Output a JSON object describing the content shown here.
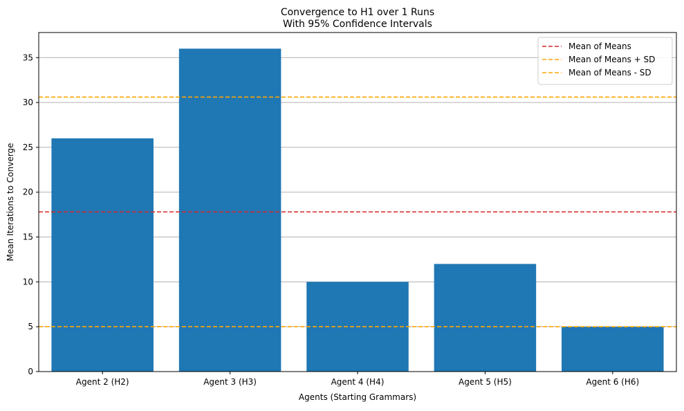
{
  "chart_data": {
    "type": "bar",
    "title": "Convergence to H1 over 1 Runs",
    "subtitle": "With 95% Confidence Intervals",
    "xlabel": "Agents (Starting Grammars)",
    "ylabel": "Mean Iterations to Converge",
    "categories": [
      "Agent 2 (H2)",
      "Agent 3 (H3)",
      "Agent 4 (H4)",
      "Agent 5 (H5)",
      "Agent 6 (H6)"
    ],
    "values": [
      26,
      36,
      10,
      12,
      5
    ],
    "ylim": [
      0,
      37.8
    ],
    "yticks": [
      0,
      5,
      10,
      15,
      20,
      25,
      30,
      35
    ],
    "grid": "y",
    "bar_color": "#1f77b4",
    "reference_lines": [
      {
        "name": "Mean of Means",
        "value": 17.8,
        "color": "#d62728"
      },
      {
        "name": "Mean of Means + SD",
        "value": 30.6,
        "color": "#ffa500"
      },
      {
        "name": "Mean of Means - SD",
        "value": 5.0,
        "color": "#ffa500"
      }
    ],
    "legend_position": "top-right"
  }
}
